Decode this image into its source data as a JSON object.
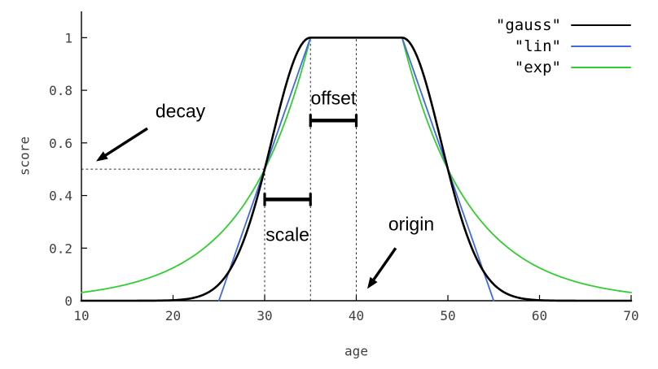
{
  "chart_data": {
    "type": "line",
    "title": "",
    "xlabel": "age",
    "ylabel": "score",
    "xlim": [
      10,
      70
    ],
    "ylim": [
      0,
      1.1
    ],
    "x_ticks": [
      10,
      20,
      30,
      40,
      50,
      60,
      70
    ],
    "y_ticks": [
      0,
      0.2,
      0.4,
      0.6,
      0.8,
      1
    ],
    "grid": false,
    "legend_position": "top-right",
    "params": {
      "origin": 40,
      "offset": 5,
      "scale": 5,
      "decay": 0.5
    },
    "series": [
      {
        "name": "\"gauss\"",
        "type": "gauss",
        "color": "#000000",
        "width": 2.6,
        "sample_points": {
          "x": [
            10,
            20,
            25,
            28,
            30,
            32,
            35,
            40,
            45,
            48,
            50,
            52,
            55,
            60,
            70
          ],
          "y": [
            0,
            0.002,
            0.063,
            0.257,
            0.5,
            0.779,
            1,
            1,
            1,
            0.779,
            0.5,
            0.257,
            0.063,
            0.002,
            0
          ]
        }
      },
      {
        "name": "\"lin\"",
        "type": "lin",
        "color": "#4169e1",
        "width": 1.8,
        "domain": [
          25,
          55
        ],
        "sample_points": {
          "x": [
            25,
            30,
            35,
            40,
            45,
            50,
            55
          ],
          "y": [
            0,
            0.5,
            1,
            1,
            1,
            0.5,
            0
          ]
        }
      },
      {
        "name": "\"exp\"",
        "type": "exp",
        "color": "#32cd32",
        "width": 1.8,
        "sample_points": {
          "x": [
            10,
            15,
            20,
            25,
            30,
            35,
            40,
            45,
            50,
            55,
            60,
            65,
            70
          ],
          "y": [
            0.031,
            0.063,
            0.125,
            0.25,
            0.5,
            1,
            1,
            1,
            0.5,
            0.25,
            0.125,
            0.063,
            0.031
          ]
        }
      }
    ],
    "guides": {
      "v_dashed": [
        {
          "x": 30,
          "y0": 0,
          "y1": 0.5
        },
        {
          "x": 35,
          "y0": 0,
          "y1": 1
        },
        {
          "x": 40,
          "y0": 0,
          "y1": 1
        }
      ],
      "h_dashed": [
        {
          "y": 0.5,
          "x0": 10,
          "x1": 30
        }
      ]
    },
    "annotations": {
      "decay": {
        "label": "decay",
        "label_at": [
          20.8,
          0.72
        ],
        "arrow_from": [
          17.2,
          0.655
        ],
        "arrow_to": [
          11.6,
          0.53
        ]
      },
      "origin": {
        "label": "origin",
        "label_at": [
          46.0,
          0.29
        ],
        "arrow_from": [
          44.3,
          0.2
        ],
        "arrow_to": [
          41.2,
          0.045
        ]
      },
      "offset": {
        "label": "offset",
        "label_at": [
          37.5,
          0.77
        ],
        "bracket": {
          "x0": 35,
          "x1": 40,
          "y": 0.685
        }
      },
      "scale": {
        "label": "scale",
        "label_at": [
          32.5,
          0.25
        ],
        "bracket": {
          "x0": 30,
          "x1": 35,
          "y": 0.385
        }
      }
    }
  }
}
